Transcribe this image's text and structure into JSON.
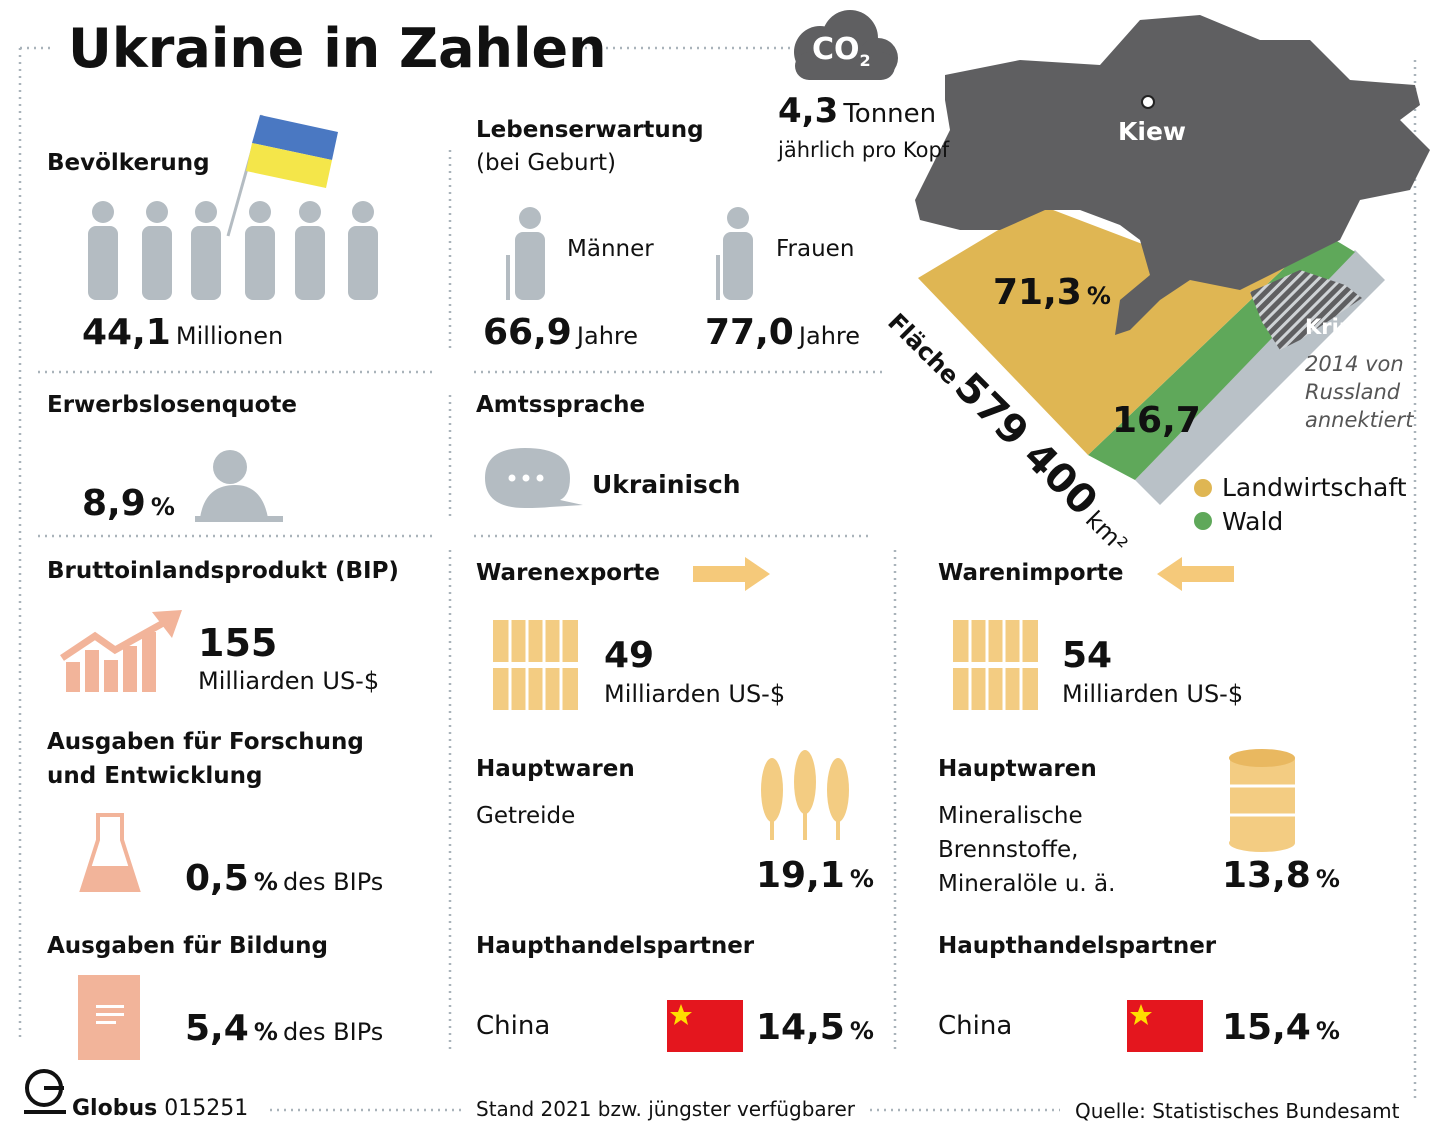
{
  "header": {
    "title": "Ukraine in Zahlen"
  },
  "co2": {
    "label": "CO",
    "subscript": "2",
    "value": "4,3",
    "unit": "Tonnen",
    "note": "jährlich pro Kopf"
  },
  "population": {
    "title": "Bevölkerung",
    "value": "44,1",
    "unit": "Millionen"
  },
  "life_expectancy": {
    "title": "Lebenserwartung",
    "subtitle": "(bei Geburt)",
    "men": {
      "label": "Männer",
      "value": "66,9",
      "unit": "Jahre"
    },
    "women": {
      "label": "Frauen",
      "value": "77,0",
      "unit": "Jahre"
    }
  },
  "unemployment": {
    "title": "Erwerbslosenquote",
    "value": "8,9",
    "unit": "%"
  },
  "language": {
    "title": "Amtssprache",
    "value": "Ukrainisch"
  },
  "map": {
    "capital": "Kiew",
    "agriculture": "71,3",
    "agriculture_unit": "%",
    "forest": "16,7",
    "area_label": "Fläche",
    "area": "579 400",
    "area_unit": "km²",
    "crimea": "Krim",
    "crimea_note": [
      "2014 von",
      "Russland",
      "annektiert"
    ],
    "legend": [
      "Landwirtschaft",
      "Wald"
    ]
  },
  "gdp": {
    "title": "Bruttoinlandsprodukt (BIP)",
    "value": "155",
    "unit": "Milliarden US-$"
  },
  "research": {
    "title": [
      "Ausgaben für Forschung",
      "und Entwicklung"
    ],
    "value": "0,5",
    "unit": "%",
    "suffix": "des BIPs"
  },
  "education": {
    "title": "Ausgaben für Bildung",
    "value": "5,4",
    "unit": "%",
    "suffix": "des BIPs"
  },
  "exports": {
    "title": "Warenexporte",
    "value": "49",
    "unit": "Milliarden US-$",
    "goods_title": "Hauptwaren",
    "goods": [
      "Getreide"
    ],
    "goods_share": "19,1",
    "goods_unit": "%",
    "partner_title": "Haupthandelspartner",
    "partner": "China",
    "partner_share": "14,5",
    "partner_unit": "%"
  },
  "imports": {
    "title": "Warenimporte",
    "value": "54",
    "unit": "Milliarden US-$",
    "goods_title": "Hauptwaren",
    "goods": [
      "Mineralische",
      "Brennstoffe,",
      "Mineralöle u. ä."
    ],
    "goods_share": "13,8",
    "goods_unit": "%",
    "partner_title": "Haupthandelspartner",
    "partner": "China",
    "partner_share": "15,4",
    "partner_unit": "%"
  },
  "footer": {
    "brand": "Globus",
    "code": "015251",
    "note": "Stand 2021 bzw. jüngster verfügbarer",
    "source": "Quelle: Statistisches Bundesamt"
  }
}
